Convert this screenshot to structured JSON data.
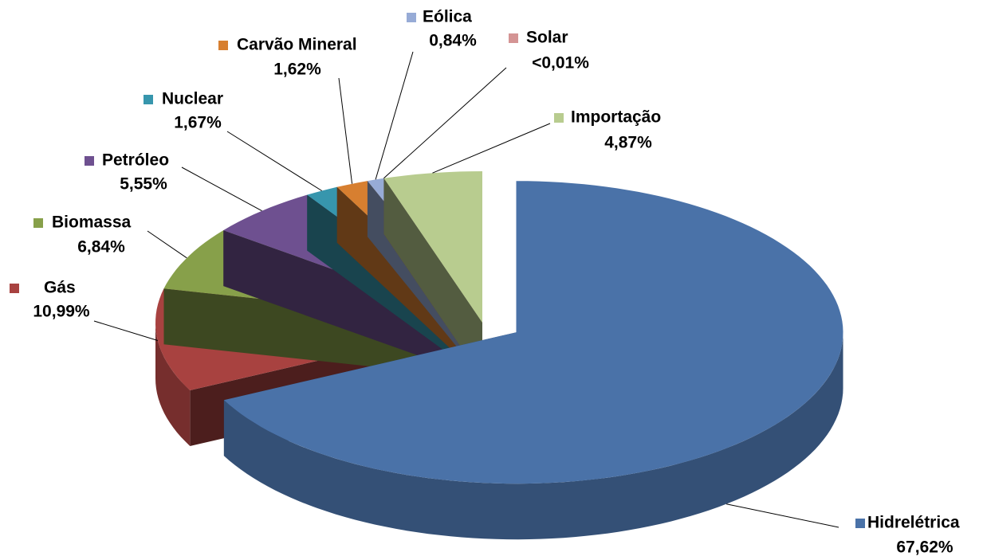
{
  "chart_data": {
    "type": "pie",
    "categories": [
      "Hidrelétrica",
      "Gás",
      "Biomassa",
      "Petróleo",
      "Nuclear",
      "Carvão Mineral",
      "Eólica",
      "Solar",
      "Importação"
    ],
    "values": [
      67.62,
      10.99,
      6.84,
      5.55,
      1.67,
      1.62,
      0.84,
      0.005,
      4.87
    ],
    "value_labels": [
      "67,62%",
      "10,99%",
      "6,84%",
      "5,55%",
      "1,67%",
      "1,62%",
      "0,84%",
      "<0,01%",
      "4,87%"
    ],
    "colors": [
      "#4a72a8",
      "#a84240",
      "#87a04a",
      "#6e5090",
      "#3796ad",
      "#d77f30",
      "#97abd6",
      "#d49494",
      "#b8cc8f"
    ]
  }
}
